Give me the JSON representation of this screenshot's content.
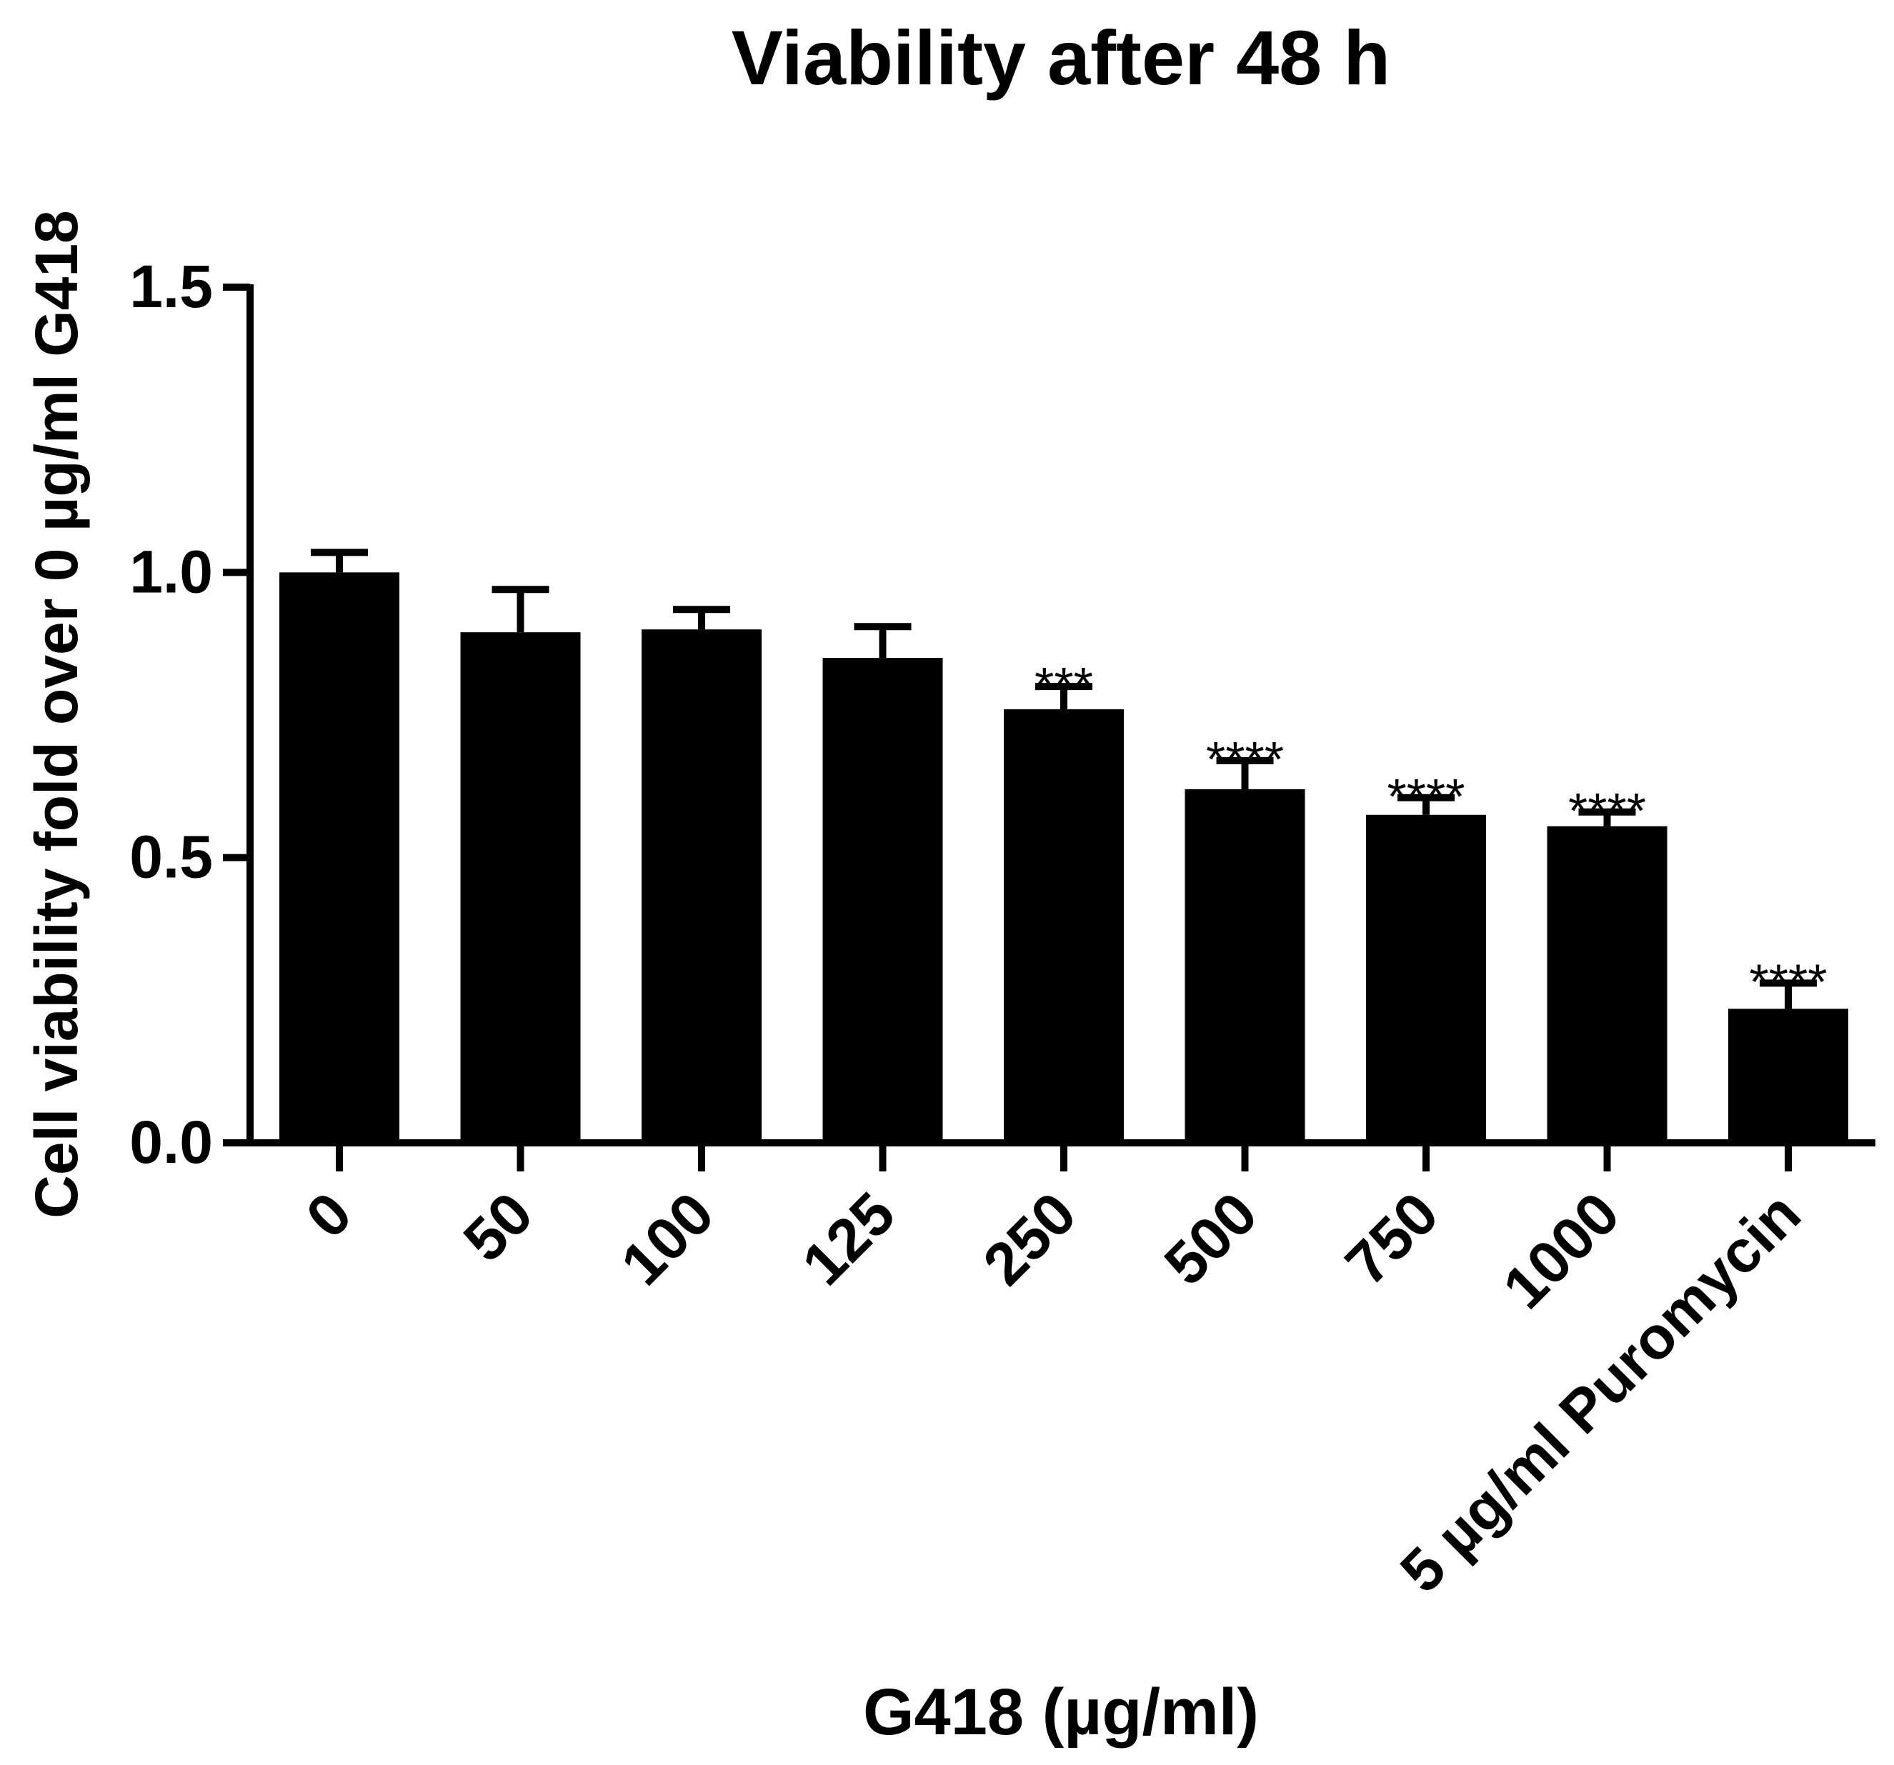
{
  "chart_data": {
    "type": "bar",
    "title": "Viability after 48 h",
    "xlabel": "G418 (µg/ml)",
    "ylabel": "Cell viability fold over 0 µg/ml G418",
    "categories": [
      "0",
      "50",
      "100",
      "125",
      "250",
      "500",
      "750",
      "1000",
      "5 µg/ml Puromycin"
    ],
    "values": [
      1.0,
      0.895,
      0.9,
      0.85,
      0.76,
      0.62,
      0.575,
      0.555,
      0.235
    ],
    "error_upper": [
      0.035,
      0.075,
      0.035,
      0.055,
      0.04,
      0.05,
      0.03,
      0.025,
      0.045
    ],
    "annotations": [
      "",
      "",
      "",
      "",
      "***",
      "****",
      "****",
      "****",
      "****"
    ],
    "ylim": [
      0,
      1.5
    ],
    "yticks": [
      0.0,
      0.5,
      1.0,
      1.5
    ],
    "ytick_labels": [
      "0.0",
      "0.5",
      "1.0",
      "1.5"
    ],
    "grid": false,
    "bar_color": "#000000",
    "axis_color": "#000000",
    "background": "#ffffff"
  }
}
